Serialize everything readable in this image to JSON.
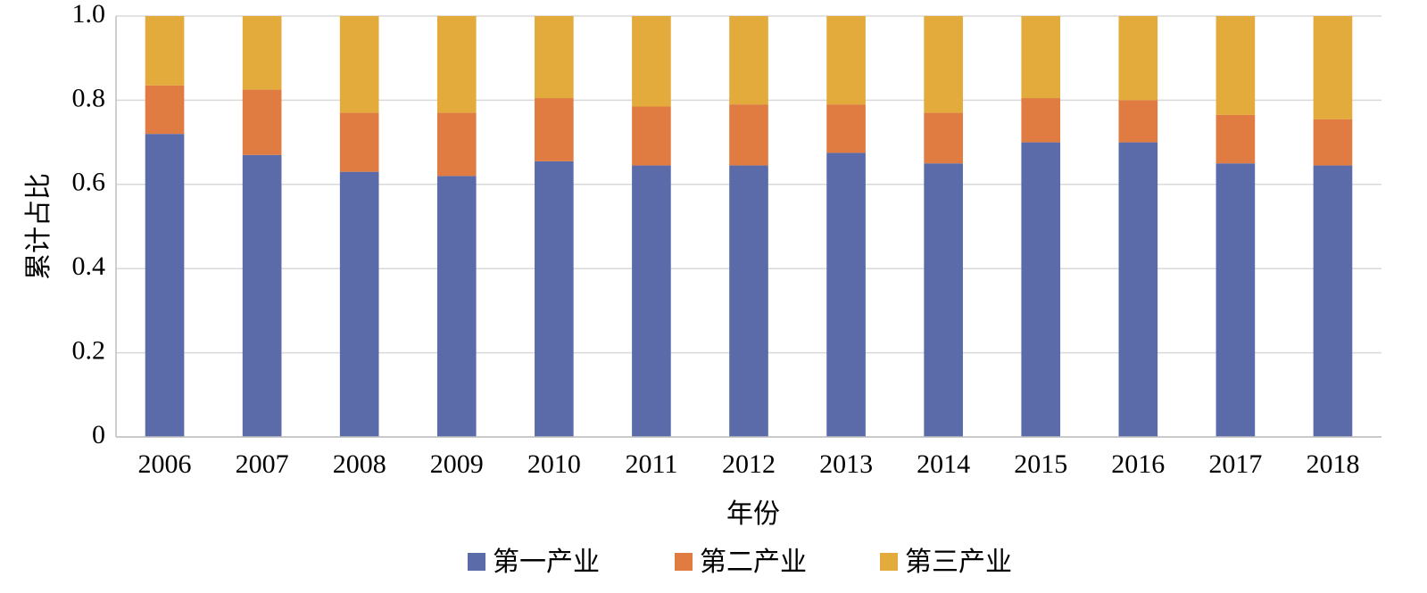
{
  "chart_data": {
    "type": "bar",
    "stacked": true,
    "xlabel": "年份",
    "ylabel": "累计占比",
    "ylim": [
      0,
      1.0
    ],
    "yticks": [
      "0",
      "0.2",
      "0.4",
      "0.6",
      "0.8",
      "1.0"
    ],
    "grid": true,
    "legend_position": "bottom",
    "categories": [
      "2006",
      "2007",
      "2008",
      "2009",
      "2010",
      "2011",
      "2012",
      "2013",
      "2014",
      "2015",
      "2016",
      "2017",
      "2018"
    ],
    "series": [
      {
        "name": "第一产业",
        "color": "#5b6ba9",
        "values": [
          0.72,
          0.67,
          0.63,
          0.62,
          0.655,
          0.645,
          0.645,
          0.675,
          0.65,
          0.7,
          0.7,
          0.65,
          0.645
        ]
      },
      {
        "name": "第二产业",
        "color": "#e07b42",
        "values": [
          0.115,
          0.155,
          0.14,
          0.15,
          0.15,
          0.14,
          0.145,
          0.115,
          0.12,
          0.105,
          0.1,
          0.115,
          0.11
        ]
      },
      {
        "name": "第三产业",
        "color": "#e3aa3c",
        "values": [
          0.165,
          0.175,
          0.23,
          0.23,
          0.195,
          0.215,
          0.21,
          0.21,
          0.23,
          0.195,
          0.2,
          0.235,
          0.245
        ]
      }
    ]
  }
}
